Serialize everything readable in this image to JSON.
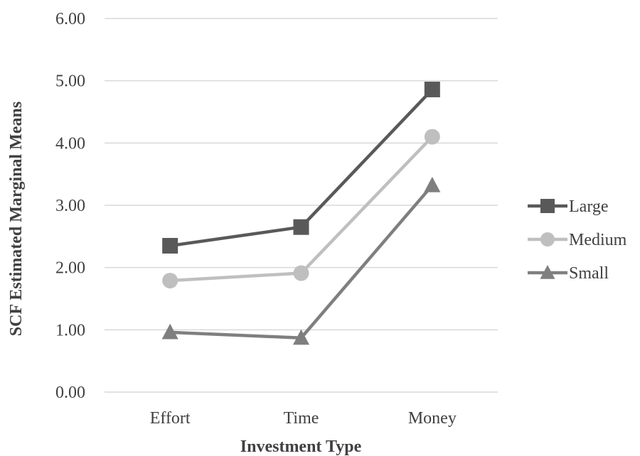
{
  "chart_data": {
    "type": "line",
    "title": "",
    "xlabel": "Investment Type",
    "ylabel": "SCF Estimated Marginal Means",
    "categories": [
      "Effort",
      "Time",
      "Money"
    ],
    "ylim": [
      0,
      6
    ],
    "yticks": [
      "0.00",
      "1.00",
      "2.00",
      "3.00",
      "4.00",
      "5.00",
      "6.00"
    ],
    "grid": true,
    "legend_position": "right",
    "series": [
      {
        "name": "Large",
        "values": [
          2.35,
          2.65,
          4.86
        ],
        "color": "#595959",
        "marker": "square"
      },
      {
        "name": "Medium",
        "values": [
          1.79,
          1.91,
          4.1
        ],
        "color": "#bfbfbf",
        "marker": "circle"
      },
      {
        "name": "Small",
        "values": [
          0.96,
          0.87,
          3.32
        ],
        "color": "#7f7f7f",
        "marker": "triangle"
      }
    ]
  }
}
